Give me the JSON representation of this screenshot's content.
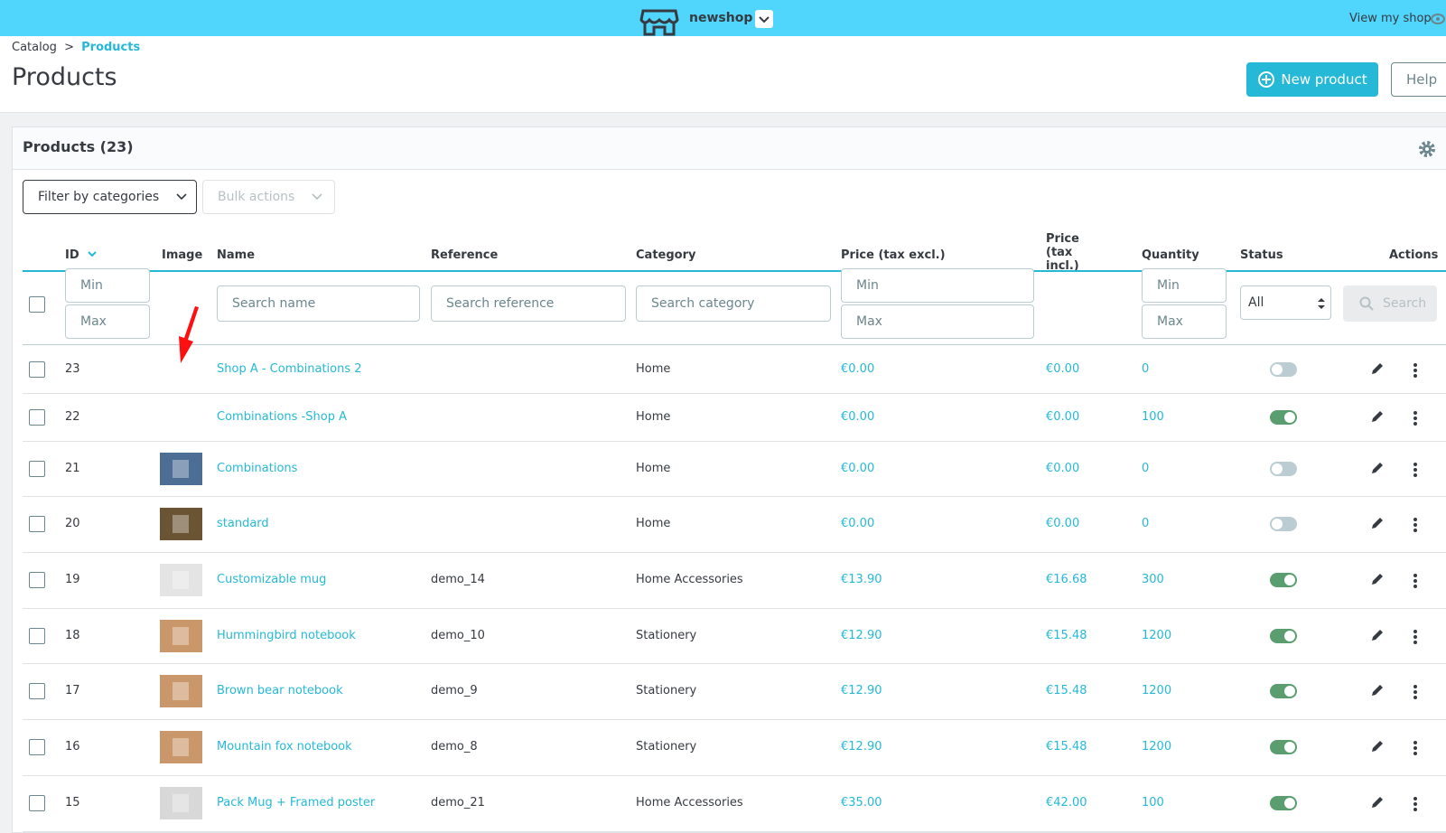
{
  "topbar": {
    "shop": "newshop",
    "view_shop": "View my shop"
  },
  "breadcrumb": {
    "parent": "Catalog",
    "separator": ">",
    "current": "Products"
  },
  "header": {
    "title": "Products",
    "new_product": "New product",
    "help": "Help"
  },
  "panel": {
    "title": "Products (23)",
    "filter_categories": "Filter by categories",
    "bulk_actions": "Bulk actions"
  },
  "table": {
    "columns": [
      "ID",
      "Image",
      "Name",
      "Reference",
      "Category",
      "Price (tax excl.)",
      "Price (tax incl.)",
      "Quantity",
      "Status",
      "Actions"
    ],
    "filters": {
      "id_min": "Min",
      "id_max": "Max",
      "name": "Search name",
      "reference": "Search reference",
      "category": "Search category",
      "price_min": "Min",
      "price_max": "Max",
      "quantity_min": "Min",
      "quantity_max": "Max",
      "status": "All",
      "search": "Search"
    },
    "rows": [
      {
        "id": 23,
        "name": "Shop A - Combinations 2",
        "reference": null,
        "category": "Home",
        "price_excl": "€0.00",
        "price_incl": "€0.00",
        "quantity": 0,
        "status": false
      },
      {
        "id": 22,
        "name": "Combinations -Shop A",
        "reference": null,
        "category": "Home",
        "price_excl": "€0.00",
        "price_incl": "€0.00",
        "quantity": 100,
        "status": true
      },
      {
        "id": 21,
        "name": "Combinations",
        "reference": null,
        "category": "Home",
        "price_excl": "€0.00",
        "price_incl": "€0.00",
        "quantity": 0,
        "status": false
      },
      {
        "id": 20,
        "name": "standard",
        "reference": null,
        "category": "Home",
        "price_excl": "€0.00",
        "price_incl": "€0.00",
        "quantity": 0,
        "status": false
      },
      {
        "id": 19,
        "name": "Customizable mug",
        "reference": "demo_14",
        "category": "Home Accessories",
        "price_excl": "€13.90",
        "price_incl": "€16.68",
        "quantity": 300,
        "status": true
      },
      {
        "id": 18,
        "name": "Hummingbird notebook",
        "reference": "demo_10",
        "category": "Stationery",
        "price_excl": "€12.90",
        "price_incl": "€15.48",
        "quantity": 1200,
        "status": true
      },
      {
        "id": 17,
        "name": "Brown bear notebook",
        "reference": "demo_9",
        "category": "Stationery",
        "price_excl": "€12.90",
        "price_incl": "€15.48",
        "quantity": 1200,
        "status": true
      },
      {
        "id": 16,
        "name": "Mountain fox notebook",
        "reference": "demo_8",
        "category": "Stationery",
        "price_excl": "€12.90",
        "price_incl": "€15.48",
        "quantity": 1200,
        "status": true
      },
      {
        "id": 15,
        "name": "Pack Mug + Framed poster",
        "reference": "demo_21",
        "category": "Home Accessories",
        "price_excl": "€35.00",
        "price_incl": "€42.00",
        "quantity": 100,
        "status": true
      }
    ]
  }
}
